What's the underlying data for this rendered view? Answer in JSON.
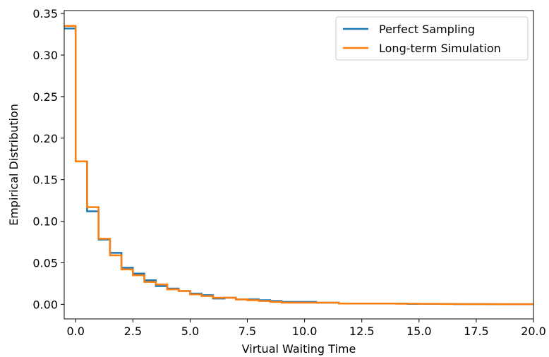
{
  "chart_data": {
    "type": "line",
    "step": true,
    "title": "",
    "xlabel": "Virtual Waiting Time",
    "ylabel": "Empirical Distribution",
    "xlim": [
      -0.5,
      20.0
    ],
    "ylim": [
      -0.0175,
      0.3535
    ],
    "x_ticks": [
      0.0,
      2.5,
      5.0,
      7.5,
      10.0,
      12.5,
      15.0,
      17.5,
      20.0
    ],
    "x_tick_labels": [
      "0.0",
      "2.5",
      "5.0",
      "7.5",
      "10.0",
      "12.5",
      "15.0",
      "17.5",
      "20.0"
    ],
    "y_ticks": [
      0.0,
      0.05,
      0.1,
      0.15,
      0.2,
      0.25,
      0.3,
      0.35
    ],
    "y_tick_labels": [
      "0.00",
      "0.05",
      "0.10",
      "0.15",
      "0.20",
      "0.25",
      "0.30",
      "0.35"
    ],
    "grid": false,
    "legend_position": "top-right",
    "bin_edges": [
      -0.5,
      0.0,
      0.5,
      1.0,
      1.5,
      2.0,
      2.5,
      3.0,
      3.5,
      4.0,
      4.5,
      5.0,
      5.5,
      6.0,
      6.5,
      7.0,
      7.5,
      8.0,
      8.5,
      9.0,
      9.5,
      10.0,
      10.5,
      11.0,
      11.5,
      12.0,
      12.5,
      13.0,
      13.5,
      14.0,
      14.5,
      15.0,
      15.5,
      16.0,
      16.5,
      17.0,
      17.5,
      18.0,
      18.5,
      19.0,
      19.5,
      20.0
    ],
    "series": [
      {
        "name": "Perfect Sampling",
        "color": "#1f77b4",
        "values": [
          0.332,
          0.172,
          0.112,
          0.078,
          0.062,
          0.044,
          0.037,
          0.029,
          0.022,
          0.019,
          0.016,
          0.013,
          0.011,
          0.007,
          0.008,
          0.006,
          0.006,
          0.005,
          0.004,
          0.003,
          0.003,
          0.003,
          0.002,
          0.002,
          0.001,
          0.001,
          0.001,
          0.001,
          0.001,
          0.001,
          0.0005,
          0.0005,
          0.0005,
          0.0005,
          0.0003,
          0.0003,
          0.0003,
          0.0002,
          0.0002,
          0.0002,
          0.0002
        ]
      },
      {
        "name": "Long-term Simulation",
        "color": "#ff7f0e",
        "values": [
          0.335,
          0.172,
          0.117,
          0.079,
          0.059,
          0.042,
          0.035,
          0.027,
          0.024,
          0.018,
          0.016,
          0.012,
          0.01,
          0.008,
          0.008,
          0.006,
          0.005,
          0.004,
          0.003,
          0.002,
          0.002,
          0.002,
          0.002,
          0.002,
          0.001,
          0.001,
          0.001,
          0.001,
          0.001,
          0.0008,
          0.0008,
          0.0006,
          0.0006,
          0.0004,
          0.0004,
          0.0003,
          0.0003,
          0.0003,
          0.0002,
          0.0002,
          0.0002
        ]
      }
    ]
  }
}
